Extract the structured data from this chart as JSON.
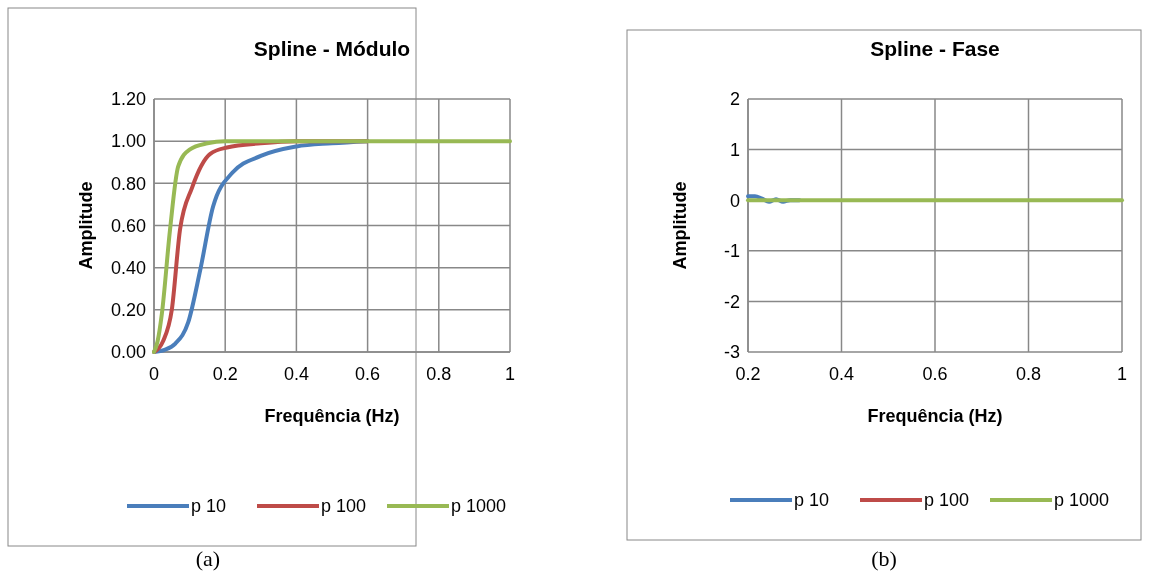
{
  "chart_data": [
    {
      "type": "line",
      "title": "Spline - Módulo",
      "xlabel": "Frequência (Hz)",
      "ylabel": "Amplitude",
      "xlim": [
        0,
        1
      ],
      "xticks": [
        0,
        0.2,
        0.4,
        0.6,
        0.8,
        1
      ],
      "ylim": [
        0,
        1.2
      ],
      "yticks": [
        {
          "value": 0,
          "label": "0.00"
        },
        {
          "value": 0.2,
          "label": "0.20"
        },
        {
          "value": 0.4,
          "label": "0.40"
        },
        {
          "value": 0.6,
          "label": "0.60"
        },
        {
          "value": 0.8,
          "label": "0.80"
        },
        {
          "value": 1,
          "label": "1.00"
        },
        {
          "value": 1.2,
          "label": "1.20"
        }
      ],
      "grid": true,
      "legend": "bottom",
      "line_style": "solid",
      "annotations": [
        "(a)"
      ],
      "series": [
        {
          "name": "p 10",
          "color": "#4a7ebb",
          "x": [
            0,
            0.03,
            0.06,
            0.096,
            0.13,
            0.166,
            0.22,
            0.3,
            0.4,
            0.5,
            0.6
          ],
          "values": [
            0,
            0.01,
            0.04,
            0.14,
            0.39,
            0.69,
            0.85,
            0.93,
            0.975,
            0.99,
            1
          ]
        },
        {
          "name": "p 100",
          "color": "#be4b48",
          "x": [
            0,
            0.025,
            0.05,
            0.073,
            0.107,
            0.158,
            0.205,
            0.3,
            0.4,
            0.6
          ],
          "values": [
            0,
            0.05,
            0.2,
            0.58,
            0.78,
            0.94,
            0.97,
            0.99,
            1,
            1
          ]
        },
        {
          "name": "p 1000",
          "color": "#98b954",
          "x": [
            0,
            0.01,
            0.022,
            0.045,
            0.068,
            0.1,
            0.15,
            0.2,
            0.3,
            0.5,
            0.7,
            1
          ],
          "values": [
            0,
            0.05,
            0.18,
            0.58,
            0.88,
            0.96,
            0.99,
            1,
            1,
            1,
            1,
            1
          ]
        }
      ]
    },
    {
      "type": "line",
      "title": "Spline - Fase",
      "xlabel": "Frequência (Hz)",
      "ylabel": "Amplitude",
      "xlim": [
        0.2,
        1
      ],
      "xticks": [
        0.2,
        0.4,
        0.6,
        0.8,
        1
      ],
      "ylim": [
        -3,
        2
      ],
      "yticks": [
        -3,
        -2,
        -1,
        0,
        1,
        2
      ],
      "grid": true,
      "legend": "bottom",
      "line_style": "solid",
      "annotations": [
        "(b)"
      ],
      "series": [
        {
          "name": "p 10",
          "color": "#4a7ebb",
          "x": [
            0.2,
            0.215,
            0.23,
            0.245,
            0.26,
            0.275,
            0.29,
            0.31
          ],
          "values": [
            0.08,
            0.08,
            0.03,
            -0.03,
            0.02,
            -0.03,
            0,
            0
          ]
        },
        {
          "name": "p 100",
          "color": "#be4b48"
        },
        {
          "name": "p 1000",
          "color": "#98b954",
          "x": [
            0.2,
            0.3,
            0.5,
            0.7,
            1
          ],
          "values": [
            0,
            0,
            0,
            0,
            0
          ]
        }
      ]
    }
  ]
}
